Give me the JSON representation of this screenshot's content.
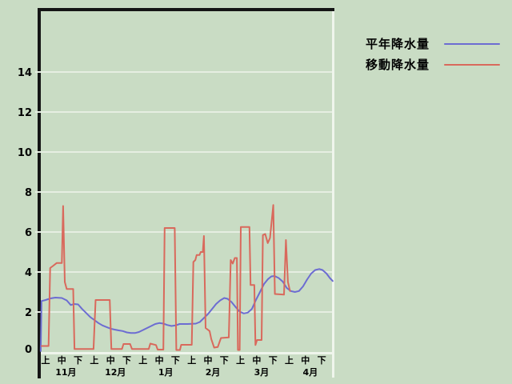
{
  "colors": {
    "background": "#c9dcc4",
    "grid": "#e6eee2",
    "axis_dark": "#151515",
    "border_light": "#eff5ec",
    "text": "#000000",
    "series_normal": "#6c6cd2",
    "series_moving": "#d9695c"
  },
  "legend": {
    "items": [
      {
        "label": "平年降水量",
        "color": "#6c6cd2"
      },
      {
        "label": "移動降水量",
        "color": "#d9695c"
      }
    ]
  },
  "chart_data": {
    "type": "line",
    "title": "",
    "xlabel": "",
    "ylabel": "",
    "ylim": [
      0,
      17.2
    ],
    "y_ticks": [
      0,
      2,
      4,
      6,
      8,
      10,
      12,
      14
    ],
    "grid": true,
    "legend_position": "top-right",
    "x_axis": {
      "period_labels": [
        "上",
        "中",
        "下",
        "上",
        "中",
        "下",
        "上",
        "中",
        "下",
        "上",
        "中",
        "下",
        "上",
        "中",
        "下",
        "上",
        "中",
        "下"
      ],
      "months": [
        {
          "label": "11月",
          "center": 1.25
        },
        {
          "label": "12月",
          "center": 4.3
        },
        {
          "label": "1月",
          "center": 7.4
        },
        {
          "label": "2月",
          "center": 10.3
        },
        {
          "label": "3月",
          "center": 13.3
        },
        {
          "label": "4月",
          "center": 16.3
        }
      ]
    },
    "series": [
      {
        "name": "平年降水量",
        "color": "#6c6cd2",
        "points": [
          [
            -0.3,
            0.05
          ],
          [
            -0.25,
            2.55
          ],
          [
            0.0,
            2.6
          ],
          [
            0.3,
            2.68
          ],
          [
            0.6,
            2.72
          ],
          [
            1.0,
            2.7
          ],
          [
            1.3,
            2.58
          ],
          [
            1.55,
            2.35
          ],
          [
            1.75,
            2.4
          ],
          [
            2.0,
            2.38
          ],
          [
            2.25,
            2.15
          ],
          [
            2.5,
            1.95
          ],
          [
            2.75,
            1.75
          ],
          [
            3.0,
            1.6
          ],
          [
            3.25,
            1.45
          ],
          [
            3.5,
            1.33
          ],
          [
            3.75,
            1.25
          ],
          [
            4.0,
            1.17
          ],
          [
            4.25,
            1.12
          ],
          [
            4.5,
            1.08
          ],
          [
            4.75,
            1.05
          ],
          [
            5.0,
            0.98
          ],
          [
            5.25,
            0.95
          ],
          [
            5.5,
            0.95
          ],
          [
            5.75,
            1.0
          ],
          [
            6.0,
            1.1
          ],
          [
            6.25,
            1.2
          ],
          [
            6.5,
            1.3
          ],
          [
            6.75,
            1.4
          ],
          [
            7.0,
            1.45
          ],
          [
            7.25,
            1.42
          ],
          [
            7.5,
            1.35
          ],
          [
            7.75,
            1.3
          ],
          [
            8.0,
            1.33
          ],
          [
            8.25,
            1.4
          ],
          [
            8.75,
            1.4
          ],
          [
            9.25,
            1.42
          ],
          [
            9.5,
            1.5
          ],
          [
            9.75,
            1.7
          ],
          [
            10.0,
            1.9
          ],
          [
            10.25,
            2.15
          ],
          [
            10.5,
            2.4
          ],
          [
            10.75,
            2.58
          ],
          [
            11.0,
            2.7
          ],
          [
            11.2,
            2.66
          ],
          [
            11.45,
            2.5
          ],
          [
            11.7,
            2.25
          ],
          [
            11.95,
            2.02
          ],
          [
            12.2,
            1.93
          ],
          [
            12.45,
            1.97
          ],
          [
            12.7,
            2.15
          ],
          [
            12.95,
            2.6
          ],
          [
            13.2,
            3.0
          ],
          [
            13.45,
            3.4
          ],
          [
            13.7,
            3.65
          ],
          [
            13.9,
            3.78
          ],
          [
            14.1,
            3.8
          ],
          [
            14.35,
            3.7
          ],
          [
            14.6,
            3.52
          ],
          [
            14.85,
            3.2
          ],
          [
            15.1,
            3.05
          ],
          [
            15.35,
            3.0
          ],
          [
            15.6,
            3.05
          ],
          [
            15.85,
            3.28
          ],
          [
            16.1,
            3.62
          ],
          [
            16.35,
            3.92
          ],
          [
            16.6,
            4.1
          ],
          [
            16.85,
            4.15
          ],
          [
            17.05,
            4.1
          ],
          [
            17.3,
            3.92
          ],
          [
            17.5,
            3.7
          ],
          [
            17.68,
            3.55
          ]
        ]
      },
      {
        "name": "移動降水量",
        "color": "#d9695c",
        "points": [
          [
            -0.25,
            0.3
          ],
          [
            0.18,
            0.3
          ],
          [
            0.28,
            4.2
          ],
          [
            0.45,
            4.3
          ],
          [
            0.68,
            4.45
          ],
          [
            1.0,
            4.45
          ],
          [
            1.08,
            7.3
          ],
          [
            1.18,
            3.5
          ],
          [
            1.3,
            3.15
          ],
          [
            1.7,
            3.15
          ],
          [
            1.78,
            0.15
          ],
          [
            2.95,
            0.15
          ],
          [
            3.08,
            2.6
          ],
          [
            3.95,
            2.6
          ],
          [
            4.05,
            0.15
          ],
          [
            4.7,
            0.15
          ],
          [
            4.8,
            0.4
          ],
          [
            5.2,
            0.4
          ],
          [
            5.32,
            0.15
          ],
          [
            6.35,
            0.15
          ],
          [
            6.45,
            0.42
          ],
          [
            6.8,
            0.35
          ],
          [
            6.9,
            0.12
          ],
          [
            7.25,
            0.12
          ],
          [
            7.33,
            6.2
          ],
          [
            7.95,
            6.2
          ],
          [
            8.05,
            0.1
          ],
          [
            8.27,
            0.1
          ],
          [
            8.35,
            0.36
          ],
          [
            9.0,
            0.36
          ],
          [
            9.1,
            4.5
          ],
          [
            9.22,
            4.6
          ],
          [
            9.3,
            4.85
          ],
          [
            9.48,
            4.85
          ],
          [
            9.55,
            5.0
          ],
          [
            9.68,
            5.0
          ],
          [
            9.75,
            5.8
          ],
          [
            9.85,
            1.2
          ],
          [
            10.1,
            1.05
          ],
          [
            10.2,
            0.65
          ],
          [
            10.38,
            0.22
          ],
          [
            10.6,
            0.25
          ],
          [
            10.8,
            0.7
          ],
          [
            11.28,
            0.73
          ],
          [
            11.4,
            4.6
          ],
          [
            11.52,
            4.42
          ],
          [
            11.65,
            4.7
          ],
          [
            11.78,
            4.7
          ],
          [
            11.84,
            0.1
          ],
          [
            11.95,
            0.1
          ],
          [
            12.02,
            6.25
          ],
          [
            12.55,
            6.25
          ],
          [
            12.62,
            3.35
          ],
          [
            12.85,
            3.35
          ],
          [
            12.92,
            0.35
          ],
          [
            13.02,
            0.6
          ],
          [
            13.3,
            0.6
          ],
          [
            13.38,
            5.85
          ],
          [
            13.52,
            5.9
          ],
          [
            13.68,
            5.45
          ],
          [
            13.82,
            5.7
          ],
          [
            14.02,
            7.35
          ],
          [
            14.12,
            2.9
          ],
          [
            14.68,
            2.87
          ],
          [
            14.8,
            5.6
          ],
          [
            14.92,
            3.5
          ],
          [
            15.05,
            3.05
          ]
        ]
      }
    ]
  }
}
